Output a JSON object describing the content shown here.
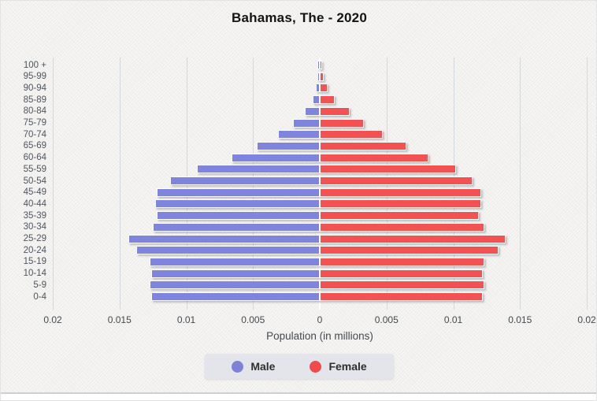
{
  "title": "Bahamas, The - 2020",
  "colors": {
    "male": "#7f85dc",
    "female": "#f25252",
    "grid": "#d3d8dd",
    "background": "#f1f0ee",
    "legend_background": "#e4e5ea",
    "text": "#45494e"
  },
  "chart_data": {
    "type": "bar",
    "subtype": "population-pyramid",
    "title": "Bahamas, The - 2020",
    "xlabel": "Population (in millions)",
    "ylabel": "",
    "grid": true,
    "legend_position": "bottom",
    "xlim": [
      0,
      0.02
    ],
    "x_ticks": [
      "0.02",
      "0.015",
      "0.01",
      "0.005",
      "0",
      "0.005",
      "0.01",
      "0.015",
      "0.02"
    ],
    "categories": [
      "100 +",
      "95-99",
      "90-94",
      "85-89",
      "80-84",
      "75-79",
      "70-74",
      "65-69",
      "60-64",
      "55-59",
      "50-54",
      "45-49",
      "40-44",
      "35-39",
      "30-34",
      "25-29",
      "20-24",
      "15-19",
      "10-14",
      "5-9",
      "0-4"
    ],
    "series": [
      {
        "name": "Male",
        "side": "left",
        "values": [
          2e-05,
          5e-05,
          0.0002,
          0.0004,
          0.001,
          0.0019,
          0.003,
          0.0046,
          0.0065,
          0.0091,
          0.0111,
          0.0121,
          0.0122,
          0.0121,
          0.0124,
          0.0142,
          0.0136,
          0.0126,
          0.0125,
          0.0126,
          0.0125
        ]
      },
      {
        "name": "Female",
        "side": "right",
        "values": [
          5e-05,
          0.0002,
          0.0005,
          0.001,
          0.0021,
          0.0032,
          0.0046,
          0.0064,
          0.008,
          0.0101,
          0.0113,
          0.012,
          0.012,
          0.0118,
          0.0122,
          0.0138,
          0.0133,
          0.0122,
          0.0121,
          0.0122,
          0.0121
        ]
      }
    ]
  }
}
